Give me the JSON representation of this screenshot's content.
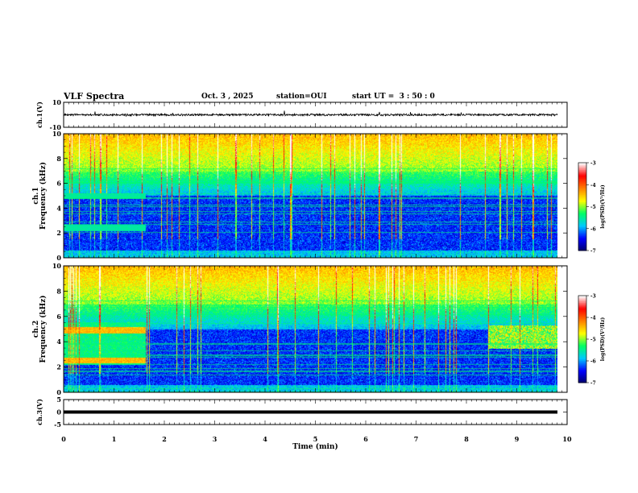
{
  "header": {
    "title": "VLF Spectra",
    "date": "Oct. 3 , 2025",
    "station": "station=OUI",
    "start_ut": "start UT =  3 : 50 : 0"
  },
  "chart_data": [
    {
      "type": "line",
      "name": "ch1-waveform",
      "ylabel": "ch.1(V)",
      "ylim": [
        -10,
        10
      ],
      "yticks": [
        "10",
        "-10"
      ],
      "xlim": [
        0,
        10
      ],
      "baseline": 0
    },
    {
      "type": "heatmap",
      "name": "ch1-spectrogram",
      "ylabel_top": "ch.1",
      "ylabel": "Frequency (kHz)",
      "ylim": [
        0,
        10
      ],
      "yticks": [
        "0",
        "2",
        "4",
        "6",
        "8",
        "10"
      ],
      "xlim": [
        0,
        10
      ],
      "colorbar": {
        "label": "log(PSD)(V²/Hz)",
        "ticks": [
          "-3",
          "-4",
          "-5",
          "-6",
          "-7"
        ],
        "range": [
          -7,
          -3
        ]
      }
    },
    {
      "type": "heatmap",
      "name": "ch2-spectrogram",
      "ylabel_top": "ch.2",
      "ylabel": "Frequency (kHz)",
      "ylim": [
        0,
        10
      ],
      "yticks": [
        "0",
        "2",
        "4",
        "6",
        "8",
        "10"
      ],
      "xlim": [
        0,
        10
      ],
      "colorbar": {
        "label": "log(PSD)(V²/Hz)",
        "ticks": [
          "-3",
          "-4",
          "-5",
          "-6",
          "-7"
        ],
        "range": [
          -7,
          -3
        ]
      }
    },
    {
      "type": "line",
      "name": "ch3-waveform",
      "ylabel": "ch.3(V)",
      "ylim": [
        -5,
        5
      ],
      "yticks": [
        "5",
        "0",
        "-5"
      ],
      "xlim": [
        0,
        10
      ],
      "baseline": 0
    }
  ],
  "x_axis": {
    "label": "Time (min)",
    "ticks": [
      "0",
      "1",
      "2",
      "3",
      "4",
      "5",
      "6",
      "7",
      "8",
      "9",
      "10"
    ]
  },
  "colors": {
    "axis": "#000000",
    "colormap": [
      "#000066",
      "#0000ff",
      "#00c8ff",
      "#00ff64",
      "#ffff00",
      "#ff8000",
      "#ff0000",
      "#ffffff"
    ]
  }
}
